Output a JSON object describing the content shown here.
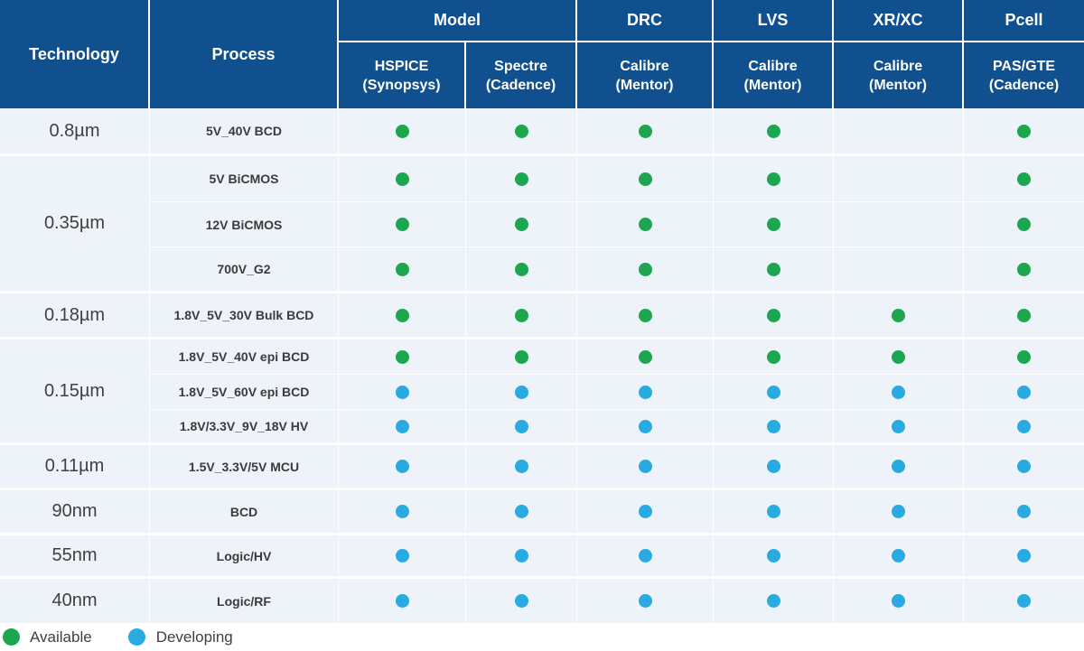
{
  "colors": {
    "header_bg": "#11508f",
    "body_bg": "#eef2f9",
    "available_green": "#1ca64f",
    "developing_blue": "#29abe2"
  },
  "header": {
    "technology": "Technology",
    "process": "Process",
    "groups": {
      "model": "Model",
      "drc": "DRC",
      "lvs": "LVS",
      "xrxc": "XR/XC",
      "pcell": "Pcell"
    },
    "tools": [
      {
        "name": "HSPICE",
        "vendor": "(Synopsys)"
      },
      {
        "name": "Spectre",
        "vendor": "(Cadence)"
      },
      {
        "name": "Calibre",
        "vendor": "(Mentor)"
      },
      {
        "name": "Calibre",
        "vendor": "(Mentor)"
      },
      {
        "name": "Calibre",
        "vendor": "(Mentor)"
      },
      {
        "name": "PAS/GTE",
        "vendor": "(Cadence)"
      }
    ]
  },
  "tech_groups": [
    {
      "label": "0.8µm",
      "rows": 1
    },
    {
      "label": "0.35µm",
      "rows": 3
    },
    {
      "label": "0.18µm",
      "rows": 1
    },
    {
      "label": "0.15µm",
      "rows": 3
    },
    {
      "label": "0.11µm",
      "rows": 1
    },
    {
      "label": "90nm",
      "rows": 1
    },
    {
      "label": "55nm",
      "rows": 1
    },
    {
      "label": "40nm",
      "rows": 1
    }
  ],
  "rows": [
    {
      "process": "5V_40V BCD",
      "dots": [
        "available",
        "available",
        "available",
        "available",
        "none",
        "available"
      ]
    },
    {
      "process": "5V BiCMOS",
      "dots": [
        "available",
        "available",
        "available",
        "available",
        "none",
        "available"
      ]
    },
    {
      "process": "12V BiCMOS",
      "dots": [
        "available",
        "available",
        "available",
        "available",
        "none",
        "available"
      ]
    },
    {
      "process": "700V_G2",
      "dots": [
        "available",
        "available",
        "available",
        "available",
        "none",
        "available"
      ]
    },
    {
      "process": "1.8V_5V_30V Bulk BCD",
      "dots": [
        "available",
        "available",
        "available",
        "available",
        "available",
        "available"
      ]
    },
    {
      "process": "1.8V_5V_40V epi  BCD",
      "dots": [
        "available",
        "available",
        "available",
        "available",
        "available",
        "available"
      ]
    },
    {
      "process": "1.8V_5V_60V epi BCD",
      "dots": [
        "developing",
        "developing",
        "developing",
        "developing",
        "developing",
        "developing"
      ]
    },
    {
      "process": "1.8V/3.3V_9V_18V HV",
      "dots": [
        "developing",
        "developing",
        "developing",
        "developing",
        "developing",
        "developing"
      ]
    },
    {
      "process": "1.5V_3.3V/5V MCU",
      "dots": [
        "developing",
        "developing",
        "developing",
        "developing",
        "developing",
        "developing"
      ]
    },
    {
      "process": "BCD",
      "dots": [
        "developing",
        "developing",
        "developing",
        "developing",
        "developing",
        "developing"
      ]
    },
    {
      "process": "Logic/HV",
      "dots": [
        "developing",
        "developing",
        "developing",
        "developing",
        "developing",
        "developing"
      ]
    },
    {
      "process": "Logic/RF",
      "dots": [
        "developing",
        "developing",
        "developing",
        "developing",
        "developing",
        "developing"
      ]
    }
  ],
  "legend": {
    "available": "Available",
    "developing": "Developing"
  }
}
